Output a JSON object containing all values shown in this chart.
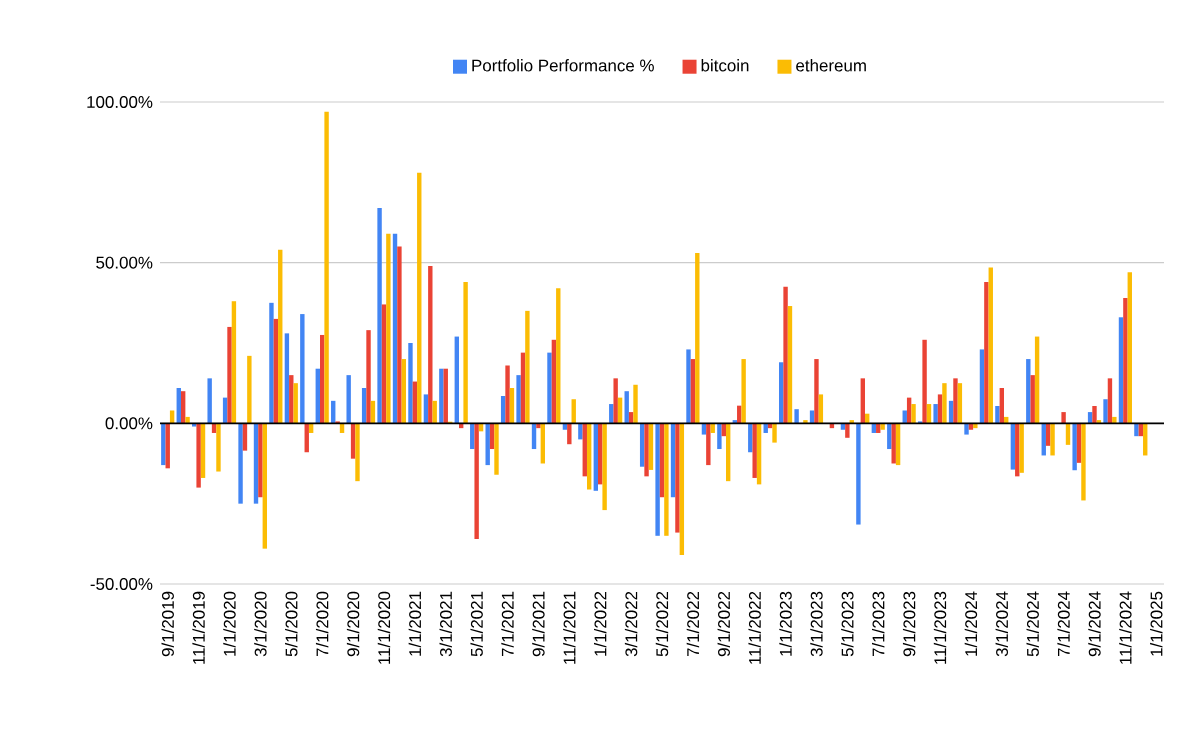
{
  "chart_data": {
    "type": "bar",
    "categories": [
      "9/1/2019",
      null,
      "11/1/2019",
      null,
      "1/1/2020",
      null,
      "3/1/2020",
      null,
      "5/1/2020",
      null,
      "7/1/2020",
      null,
      "9/1/2020",
      null,
      "11/1/2020",
      null,
      "1/1/2021",
      null,
      "3/1/2021",
      null,
      "5/1/2021",
      null,
      "7/1/2021",
      null,
      "9/1/2021",
      null,
      "11/1/2021",
      null,
      "1/1/2022",
      null,
      "3/1/2022",
      null,
      "5/1/2022",
      null,
      "7/1/2022",
      null,
      "9/1/2022",
      null,
      "11/1/2022",
      null,
      "1/1/2023",
      null,
      "3/1/2023",
      null,
      "5/1/2023",
      null,
      "7/1/2023",
      null,
      "9/1/2023",
      null,
      "11/1/2023",
      null,
      "1/1/2024",
      null,
      "3/1/2024",
      null,
      "5/1/2024",
      null,
      "7/1/2024",
      null,
      "9/1/2024",
      null,
      "11/1/2024",
      null,
      "1/1/2025"
    ],
    "series": [
      {
        "name": "Portfolio Performance %",
        "color": "#4285f4",
        "values": [
          -13,
          11,
          -1,
          14,
          8,
          -25,
          -25,
          37.5,
          28,
          34,
          17,
          7,
          15,
          11,
          67,
          59,
          25,
          9,
          17,
          27,
          -8,
          -13,
          8.5,
          15,
          -8,
          22,
          -2,
          -5,
          -21,
          6,
          10,
          -13.5,
          -35,
          -23,
          23,
          -3.5,
          -8,
          1,
          -9,
          -3,
          19,
          4.4,
          4,
          0,
          -2,
          -31.5,
          -3,
          -8,
          4,
          0.6,
          6,
          7,
          -3.5,
          23,
          5.4,
          -14.4,
          20,
          -10,
          0,
          -14.6,
          3.5,
          7.5,
          33,
          -4,
          null
        ]
      },
      {
        "name": "bitcoin",
        "color": "#ea4335",
        "values": [
          -14,
          10,
          -20,
          -3,
          30,
          -8.5,
          -23,
          32.5,
          15,
          -9,
          27.5,
          0.6,
          -11,
          29,
          37,
          55,
          13,
          49,
          17,
          -1.5,
          -36,
          -8,
          18,
          22,
          -1.5,
          26,
          -6.5,
          -16.5,
          -19,
          14,
          3.5,
          -16.5,
          -23,
          -34,
          20,
          -13,
          -4,
          5.5,
          -17,
          -1.5,
          42.5,
          0,
          20,
          -1.5,
          -4.5,
          14,
          -3,
          -12.5,
          8,
          26,
          9,
          14,
          -2,
          44,
          11,
          -16.5,
          15,
          -7,
          3.5,
          -12.3,
          5.4,
          14,
          39,
          -4,
          null
        ]
      },
      {
        "name": "ethereum",
        "color": "#fbbc04",
        "values": [
          4,
          2,
          -17,
          -15,
          38,
          21,
          -39,
          54,
          12.5,
          -3,
          97,
          -3,
          -18,
          7,
          59,
          20,
          78,
          7,
          0.5,
          44,
          -2.5,
          -16,
          11,
          35,
          -12.5,
          42,
          7.5,
          -20.6,
          -27,
          8,
          12,
          -14.5,
          -35,
          -41,
          53,
          -3,
          -18,
          20,
          -19,
          -6,
          36.5,
          1,
          9,
          0,
          1,
          3,
          -2,
          -13,
          6,
          6,
          12.5,
          12.5,
          -1.5,
          48.5,
          2,
          -15.4,
          27,
          -10,
          -6.7,
          -24,
          1,
          2,
          47,
          -10,
          null
        ]
      }
    ],
    "ylim": [
      -50,
      100
    ],
    "yticks": [
      {
        "value": -50,
        "label": "-50.00%"
      },
      {
        "value": 0,
        "label": "0.00%"
      },
      {
        "value": 50,
        "label": "50.00%"
      },
      {
        "value": 100,
        "label": "100.00%"
      }
    ],
    "grid": "y",
    "legend": "top"
  }
}
